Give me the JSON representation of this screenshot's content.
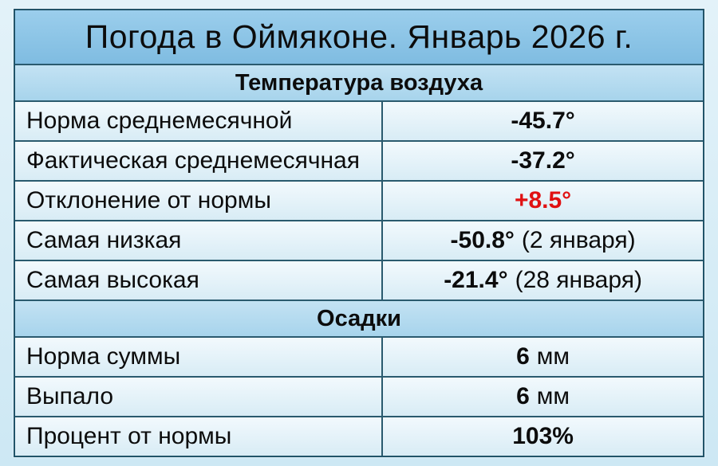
{
  "title": "Погода в Оймяконе. Январь 2026 г.",
  "colors": {
    "page_bg_top": "#e3f2f9",
    "page_bg_bottom": "#cde8f4",
    "title_band": "#8cc5e7",
    "section_band": "#b5dbf0",
    "row_bg": "#e5f3f9",
    "border": "#2a5a6e",
    "text": "#0c0c0c",
    "anomaly_red": "#e01112"
  },
  "table": {
    "sections": [
      {
        "header": "Температура воздуха",
        "rows": [
          {
            "label": "Норма среднемесячной",
            "value": "-45.7°",
            "note": ""
          },
          {
            "label": "Фактическая среднемесячная",
            "value": "-37.2°",
            "note": ""
          },
          {
            "label": "Отклонение от нормы",
            "value": "+8.5°",
            "note": "",
            "highlight": "red"
          },
          {
            "label": "Самая низкая",
            "value": "-50.8°",
            "note": "(2 января)"
          },
          {
            "label": "Самая высокая",
            "value": "-21.4°",
            "note": "(28 января)"
          }
        ]
      },
      {
        "header": "Осадки",
        "rows": [
          {
            "label": "Норма суммы",
            "value": "6",
            "note": "мм"
          },
          {
            "label": "Выпало",
            "value": "6",
            "note": "мм"
          },
          {
            "label": "Процент от нормы",
            "value": "103%",
            "note": ""
          }
        ]
      }
    ]
  }
}
